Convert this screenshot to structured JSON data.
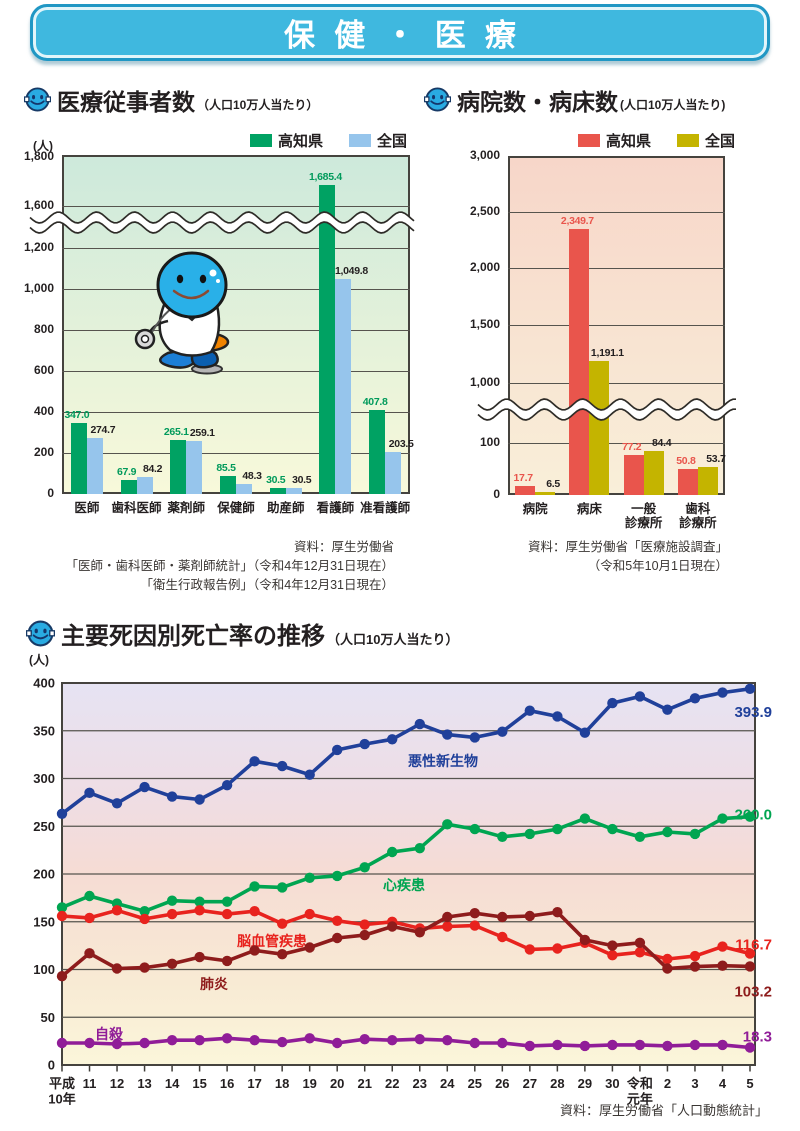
{
  "header": {
    "title": "保健・医療"
  },
  "chart_data": [
    {
      "id": "medical-workers",
      "type": "bar",
      "title": "医療従事者数",
      "subtitle": "（人口10万人当たり）",
      "unit_label": "(人)",
      "legend": [
        {
          "label": "高知県",
          "color": "#00a263"
        },
        {
          "label": "全国",
          "color": "#96c5ec"
        }
      ],
      "categories": [
        [
          "医師"
        ],
        [
          "歯科医師"
        ],
        [
          "薬剤師"
        ],
        [
          "保健師"
        ],
        [
          "助産師"
        ],
        [
          "看護師"
        ],
        [
          "准看護師"
        ]
      ],
      "series": [
        {
          "name": "高知県",
          "color": "#00a263",
          "label_color": "#009a5b",
          "values": [
            347.0,
            67.9,
            265.1,
            85.5,
            30.5,
            1685.4,
            407.8
          ],
          "value_labels": [
            "347.0",
            "67.9",
            "265.1",
            "85.5",
            "30.5",
            "1,685.4",
            "407.8"
          ]
        },
        {
          "name": "全国",
          "color": "#96c5ec",
          "label_color": "#231f20",
          "values": [
            274.7,
            84.2,
            259.1,
            48.3,
            30.5,
            1049.8,
            203.5
          ],
          "value_labels": [
            "274.7",
            "84.2",
            "259.1",
            "48.3",
            "30.5",
            "1,049.8",
            "203.5"
          ]
        }
      ],
      "y_ticks": [
        {
          "v": 0,
          "t": "0"
        },
        {
          "v": 200,
          "t": "200"
        },
        {
          "v": 400,
          "t": "400"
        },
        {
          "v": 600,
          "t": "600"
        },
        {
          "v": 800,
          "t": "800"
        },
        {
          "v": 1000,
          "t": "1,000"
        },
        {
          "v": 1200,
          "t": "1,200"
        },
        {
          "v": 1600,
          "t": "1,600"
        },
        {
          "v": 1800,
          "t": "1,800"
        }
      ],
      "ylim": [
        0,
        1800
      ],
      "axis_break_between": [
        "1,200",
        "1,600"
      ],
      "source_lines": [
        "資料：厚生労働省",
        "「医師・歯科医師・薬剤師統計」（令和4年12月31日現在）",
        "「衛生行政報告例」（令和4年12月31日現在）"
      ]
    },
    {
      "id": "hospitals-beds",
      "type": "bar",
      "title": "病院数・病床数",
      "subtitle": "(人口10万人当たり)",
      "legend": [
        {
          "label": "高知県",
          "color": "#e9554c"
        },
        {
          "label": "全国",
          "color": "#c4b400"
        }
      ],
      "categories": [
        [
          "病院"
        ],
        [
          "病床"
        ],
        [
          "一般",
          "診療所"
        ],
        [
          "歯科",
          "診療所"
        ]
      ],
      "series": [
        {
          "name": "高知県",
          "color": "#e9554c",
          "label_color": "#e9554c",
          "values": [
            17.7,
            2349.7,
            77.2,
            50.8
          ],
          "value_labels": [
            "17.7",
            "2,349.7",
            "77.2",
            "50.8"
          ]
        },
        {
          "name": "全国",
          "color": "#c4b400",
          "label_color": "#231f20",
          "values": [
            6.5,
            1191.1,
            84.4,
            53.7
          ],
          "value_labels": [
            "6.5",
            "1,191.1",
            "84.4",
            "53.7"
          ]
        }
      ],
      "y_ticks": [
        {
          "v": 0,
          "t": "0"
        },
        {
          "v": 100,
          "t": "100"
        },
        {
          "v": 1000,
          "t": "1,000"
        },
        {
          "v": 1500,
          "t": "1,500"
        },
        {
          "v": 2000,
          "t": "2,000"
        },
        {
          "v": 2500,
          "t": "2,500"
        },
        {
          "v": 3000,
          "t": "3,000"
        }
      ],
      "ylim": [
        0,
        3000
      ],
      "axis_break_between": [
        "100",
        "1,000"
      ],
      "source_lines": [
        "資料：厚生労働省「医療施設調査」",
        "（令和5年10月1日現在）"
      ]
    },
    {
      "id": "mortality-trend",
      "type": "line",
      "title": "主要死因別死亡率の推移",
      "subtitle": "（人口10万人当たり）",
      "unit_label": "(人)",
      "x_labels": [
        [
          "平成",
          "10年"
        ],
        [
          "11"
        ],
        [
          "12"
        ],
        [
          "13"
        ],
        [
          "14"
        ],
        [
          "15"
        ],
        [
          "16"
        ],
        [
          "17"
        ],
        [
          "18"
        ],
        [
          "19"
        ],
        [
          "20"
        ],
        [
          "21"
        ],
        [
          "22"
        ],
        [
          "23"
        ],
        [
          "24"
        ],
        [
          "25"
        ],
        [
          "26"
        ],
        [
          "27"
        ],
        [
          "28"
        ],
        [
          "29"
        ],
        [
          "30"
        ],
        [
          "令和",
          "元年"
        ],
        [
          "2"
        ],
        [
          "3"
        ],
        [
          "4"
        ],
        [
          "5"
        ]
      ],
      "y_ticks": [
        {
          "v": 0,
          "t": "0"
        },
        {
          "v": 50,
          "t": "50"
        },
        {
          "v": 100,
          "t": "100"
        },
        {
          "v": 150,
          "t": "150"
        },
        {
          "v": 200,
          "t": "200"
        },
        {
          "v": 250,
          "t": "250"
        },
        {
          "v": 300,
          "t": "300"
        },
        {
          "v": 350,
          "t": "350"
        },
        {
          "v": 400,
          "t": "400"
        }
      ],
      "ylim": [
        0,
        400
      ],
      "series": [
        {
          "name": "悪性新生物",
          "color": "#20409a",
          "end_label": "393.9",
          "values": [
            263,
            285,
            274,
            291,
            281,
            278,
            293,
            318,
            313,
            304,
            330,
            336,
            341,
            357,
            346,
            343,
            349,
            371,
            365,
            348,
            379,
            386,
            372,
            384,
            390,
            393.9
          ]
        },
        {
          "name": "心疾患",
          "color": "#00a551",
          "end_label": "260.0",
          "values": [
            165,
            177,
            169,
            161,
            172,
            171,
            171,
            187,
            186,
            196,
            198,
            207,
            223,
            227,
            252,
            247,
            239,
            242,
            247,
            258,
            247,
            239,
            244,
            242,
            258,
            260.0
          ]
        },
        {
          "name": "脳血管疾患",
          "color": "#e8231e",
          "end_label": "116.7",
          "values": [
            156,
            154,
            162,
            153,
            158,
            162,
            158,
            161,
            148,
            158,
            151,
            147,
            150,
            143,
            145,
            146,
            134,
            121,
            122,
            128,
            115,
            118,
            111,
            114,
            124,
            116.7
          ]
        },
        {
          "name": "肺炎",
          "color": "#8e1c1c",
          "end_label": "103.2",
          "values": [
            93,
            117,
            101,
            102,
            106,
            113,
            109,
            120,
            116,
            123,
            133,
            136,
            145,
            139,
            155,
            159,
            155,
            156,
            160,
            131,
            125,
            128,
            101,
            103,
            104,
            103.2
          ]
        },
        {
          "name": "自殺",
          "color": "#901d98",
          "end_label": "18.3",
          "values": [
            23,
            23,
            22,
            23,
            26,
            26,
            28,
            26,
            24,
            28,
            23,
            27,
            26,
            27,
            26,
            23,
            23,
            20,
            21,
            20,
            21,
            21,
            20,
            21,
            21,
            18.3
          ]
        }
      ],
      "source_lines": [
        "資料：厚生労働省「人口動態統計」"
      ]
    }
  ]
}
